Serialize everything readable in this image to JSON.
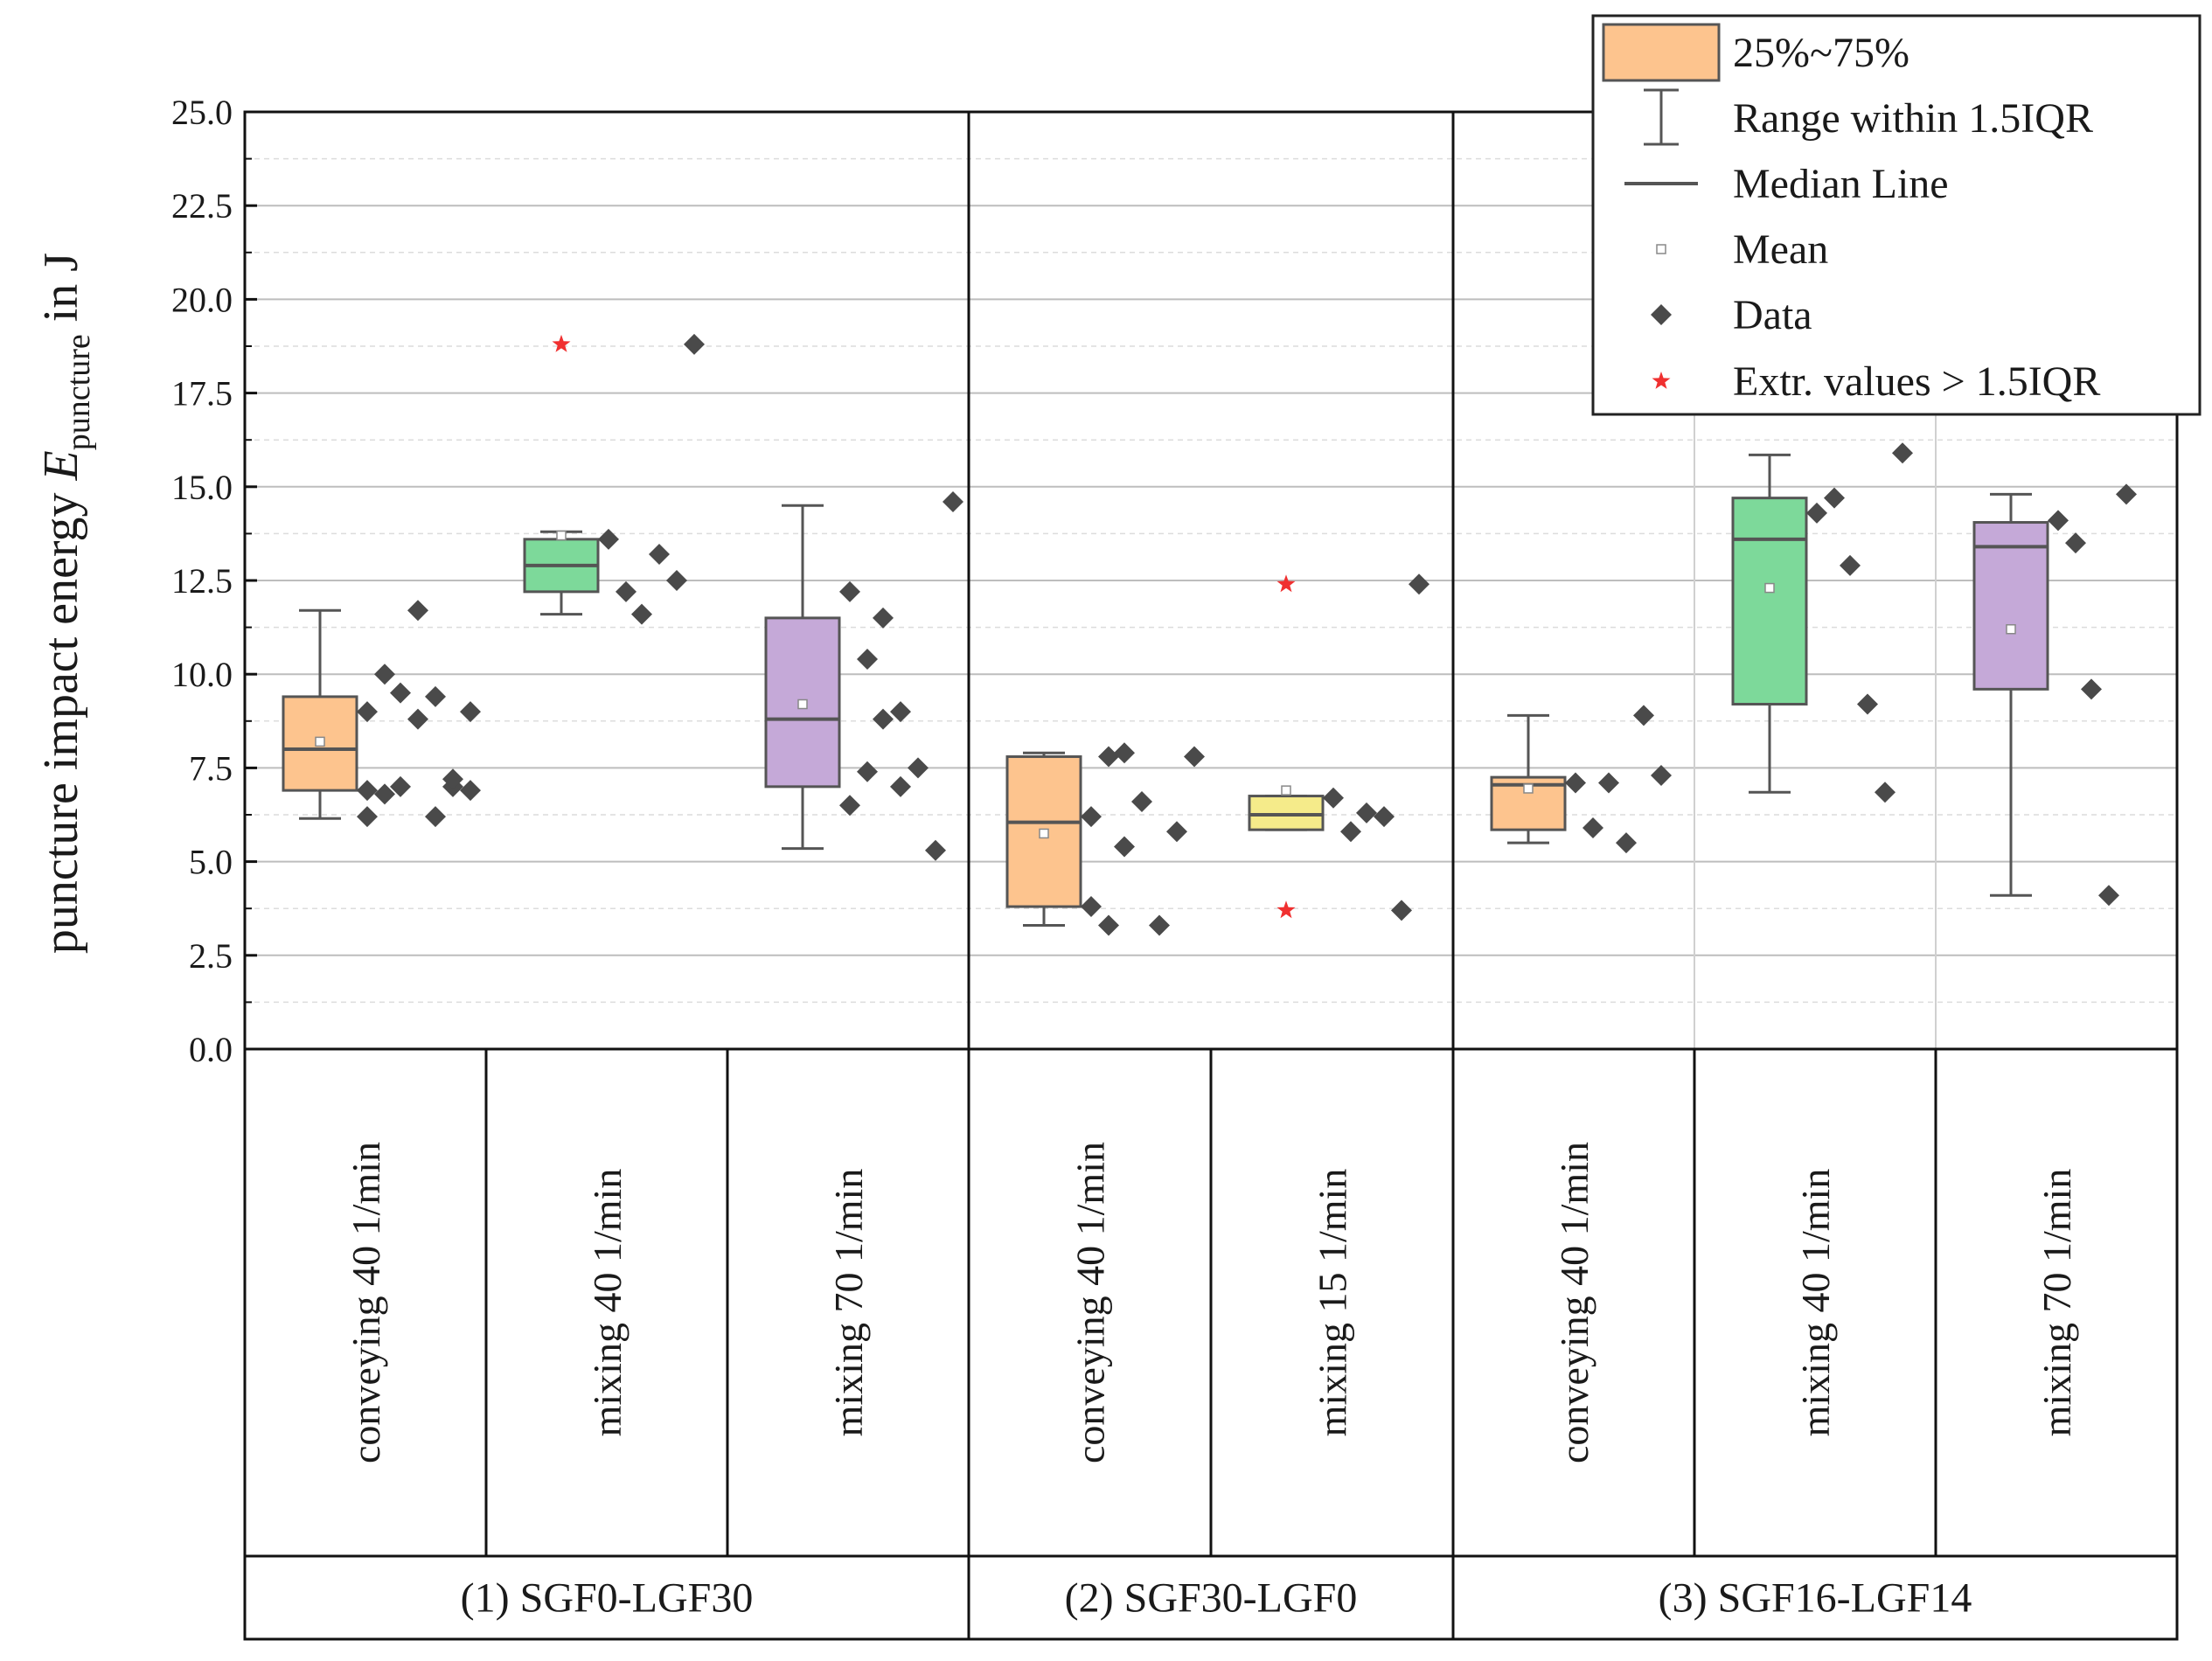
{
  "chart_data": {
    "type": "box",
    "ylabel": {
      "prefix": "puncture impact energy ",
      "symbol": "E",
      "subscript": "puncture",
      "suffix": " in J"
    },
    "ylim": [
      0,
      25
    ],
    "yticks": [
      0,
      2.5,
      5,
      7.5,
      10,
      12.5,
      15,
      17.5,
      20,
      22.5,
      25
    ],
    "ytick_labels": [
      "0.0",
      "2.5",
      "5.0",
      "7.5",
      "10.0",
      "12.5",
      "15.0",
      "17.5",
      "20.0",
      "22.5",
      "25.0"
    ],
    "grid": true,
    "legend_position": "top-right",
    "legend": [
      {
        "label": "25%~75%",
        "kind": "box"
      },
      {
        "label": "Range within 1.5IQR",
        "kind": "whisker"
      },
      {
        "label": "Median Line",
        "kind": "median"
      },
      {
        "label": "Mean",
        "kind": "mean"
      },
      {
        "label": "Data",
        "kind": "data"
      },
      {
        "label": "Extr. values > 1.5IQR",
        "kind": "outlier"
      }
    ],
    "groups": [
      {
        "label": "(1) SGF0-LGF30",
        "categories": [
          0,
          1,
          2
        ]
      },
      {
        "label": "(2) SGF30-LGF0",
        "categories": [
          3,
          4
        ]
      },
      {
        "label": "(3) SGF16-LGF14",
        "categories": [
          5,
          6,
          7
        ]
      }
    ],
    "categories": [
      {
        "label": "conveying 40 1/min",
        "color": "#FDC48E",
        "box": {
          "q1": 6.9,
          "median": 8.0,
          "q3": 9.4,
          "mean": 8.2,
          "whisker_low": 6.15,
          "whisker_high": 11.7
        },
        "data": [
          6.2,
          6.8,
          7.0,
          8.8,
          9.4,
          7.0,
          6.9,
          9.0,
          10.0,
          9.5,
          11.7,
          6.2,
          7.2,
          9.0,
          6.9
        ],
        "outliers": []
      },
      {
        "label": "mixing 40 1/min",
        "color": "#7DD99A",
        "box": {
          "q1": 12.2,
          "median": 12.9,
          "q3": 13.6,
          "mean": 13.7,
          "whisker_low": 11.6,
          "whisker_high": 13.8
        },
        "data": [
          13.6,
          12.2,
          11.6,
          13.2,
          12.5,
          18.8
        ],
        "outliers": [
          18.8
        ]
      },
      {
        "label": "mixing 70 1/min",
        "color": "#C5A9D8",
        "box": {
          "q1": 7.0,
          "median": 8.8,
          "q3": 11.5,
          "mean": 9.2,
          "whisker_low": 5.35,
          "whisker_high": 14.5
        },
        "data": [
          6.5,
          7.4,
          11.5,
          9.0,
          7.5,
          5.3,
          14.6,
          12.2,
          10.4,
          8.8,
          7.0
        ],
        "outliers": []
      },
      {
        "label": "conveying 40 1/min",
        "color": "#FDC48E",
        "box": {
          "q1": 3.8,
          "median": 6.05,
          "q3": 7.8,
          "mean": 5.75,
          "whisker_low": 3.3,
          "whisker_high": 7.9
        },
        "data": [
          6.2,
          3.3,
          5.4,
          6.6,
          3.3,
          5.8,
          7.8,
          3.8,
          7.8,
          7.9
        ],
        "outliers": []
      },
      {
        "label": "mixing 15 1/min",
        "color": "#F5EB8A",
        "box": {
          "q1": 5.85,
          "median": 6.25,
          "q3": 6.75,
          "mean": 6.9,
          "whisker_low": 5.85,
          "whisker_high": 6.75
        },
        "data": [
          6.7,
          5.8,
          6.3,
          6.2,
          3.7,
          12.4
        ],
        "outliers": [
          12.4,
          3.7
        ]
      },
      {
        "label": "conveying 40 1/min",
        "color": "#FDC48E",
        "box": {
          "q1": 5.85,
          "median": 7.05,
          "q3": 7.25,
          "mean": 6.95,
          "whisker_low": 5.5,
          "whisker_high": 8.9
        },
        "data": [
          7.1,
          5.9,
          7.1,
          5.5,
          8.9,
          7.3
        ],
        "outliers": []
      },
      {
        "label": "mixing 40 1/min",
        "color": "#7DD99A",
        "box": {
          "q1": 9.2,
          "median": 13.6,
          "q3": 14.7,
          "mean": 12.3,
          "whisker_low": 6.85,
          "whisker_high": 15.85
        },
        "data": [
          14.3,
          14.7,
          12.9,
          9.2,
          6.85,
          15.9
        ],
        "outliers": []
      },
      {
        "label": "mixing 70 1/min",
        "color": "#C5A9D8",
        "box": {
          "q1": 9.6,
          "median": 13.4,
          "q3": 14.05,
          "mean": 11.2,
          "whisker_low": 4.1,
          "whisker_high": 14.8
        },
        "data": [
          14.1,
          13.5,
          9.6,
          4.1,
          14.8
        ],
        "outliers": []
      }
    ]
  }
}
